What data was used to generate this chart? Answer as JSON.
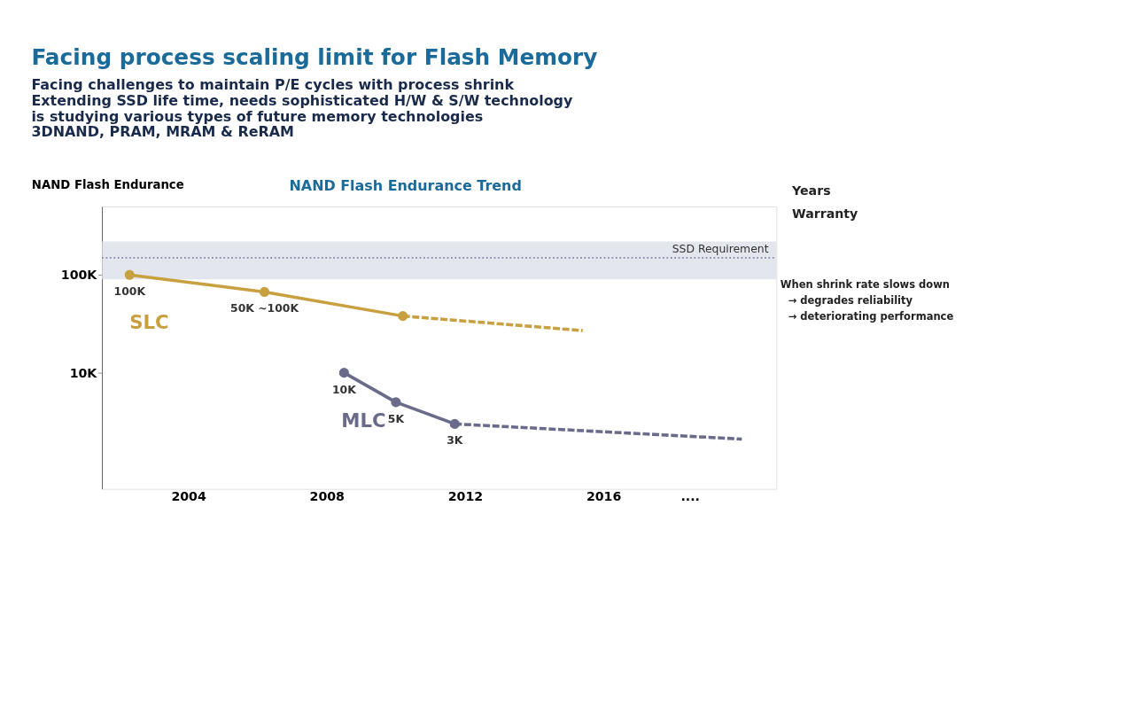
{
  "chart_data": {
    "type": "line",
    "title": "Facing process scaling limit for Flash Memory",
    "subtitle": [
      "Facing challenges to maintain P/E cycles with process shrink",
      "Extending SSD life time, needs sophisticated H/W & S/W technology",
      "is studying various types of future memory technologies",
      "3DNAND, PRAM, MRAM & ReRAM"
    ],
    "ylabel": "NAND Flash Endurance",
    "annotations": [
      "NAND Flash Endurance Trend",
      "Years",
      "Warranty",
      "When shrink rate slows down",
      "→ degrades reliability",
      "→ deteriorating performance",
      {
        "text": "50K ~100K",
        "x": 2006.2,
        "y": 67000
      }
    ],
    "series": [
      {
        "name": "SLC",
        "color": "#c8a040",
        "x": [
          2002.3,
          2006.2,
          2010.2
        ],
        "values": [
          100000,
          67000,
          38000
        ],
        "value_labels": [
          "100K",
          null,
          null
        ],
        "marker": "circle",
        "line_style": "solid"
      },
      {
        "color": "#c8a040",
        "x": [
          2010.2,
          2015.4
        ],
        "values": [
          38000,
          27000
        ],
        "marker": "none",
        "line_style": "dashed"
      },
      {
        "name": "MLC",
        "color": "#6a6a8a",
        "x": [
          2008.5,
          2010.0,
          2011.7
        ],
        "values": [
          10000,
          5000,
          3000
        ],
        "value_labels": [
          "10K",
          "5K",
          "3K"
        ],
        "marker": "circle",
        "line_style": "solid"
      },
      {
        "color": "#6a6a8a",
        "x": [
          2011.7,
          2020.0
        ],
        "values": [
          3000,
          2100
        ],
        "marker": "none",
        "line_style": "dashed"
      }
    ],
    "xlim": [
      2001.5,
      2021
    ],
    "xticks": [
      2004,
      2008,
      2012,
      2016,
      {
        "value": 2018.5,
        "label": "...."
      }
    ],
    "ylim": [
      650,
      500000
    ],
    "yticks": [
      {
        "value": 10000,
        "label": "10K"
      },
      {
        "value": 100000,
        "label": "100K"
      }
    ],
    "log": true,
    "grid": false,
    "ref_lines": [
      {
        "axis": "y",
        "value": 150000,
        "label": "SSD Requirement",
        "color": "#8888aa",
        "line_style": "dotted"
      }
    ],
    "bands": [
      {
        "axis": "y",
        "from": 90000,
        "to": 220000,
        "color": "#dde0ea"
      }
    ]
  }
}
